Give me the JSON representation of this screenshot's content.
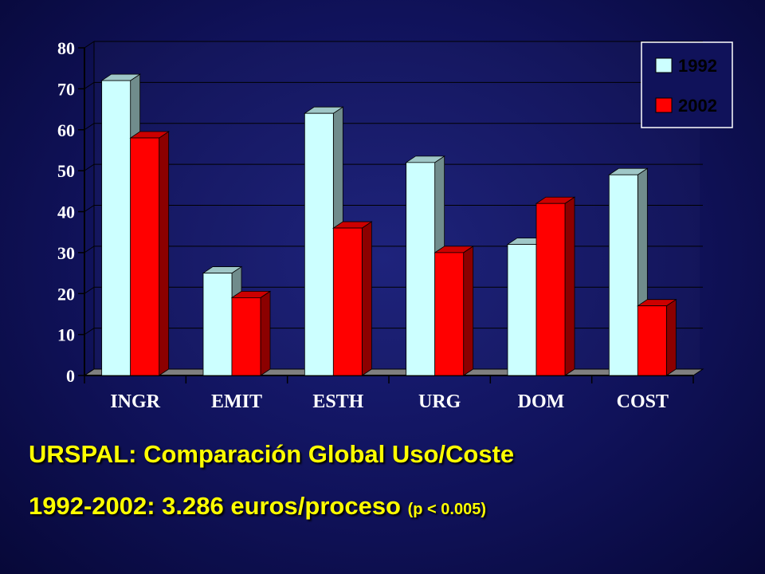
{
  "chart_data": {
    "type": "bar",
    "categories": [
      "INGR",
      "EMIT",
      "ESTH",
      "URG",
      "DOM",
      "COST"
    ],
    "series": [
      {
        "name": "1992",
        "values": [
          72,
          25,
          64,
          52,
          32,
          49
        ],
        "color": "#ccffff"
      },
      {
        "name": "2002",
        "values": [
          58,
          19,
          36,
          30,
          42,
          17
        ],
        "color": "#ff0000"
      }
    ],
    "y_ticks": [
      "0",
      "10",
      "20",
      "30",
      "40",
      "50",
      "60",
      "70",
      "80"
    ],
    "ylim": [
      0,
      80
    ],
    "grid": true,
    "legend_position": "top-right"
  },
  "caption": {
    "title": "URSPAL: Comparación Global Uso/Coste",
    "subtitle_main": "1992-2002: 3.286 euros/proceso",
    "subtitle_note": "(p < 0.005)"
  },
  "colors": {
    "background": "#10125a",
    "caption_text": "#ffff00",
    "grid": "#000000"
  }
}
